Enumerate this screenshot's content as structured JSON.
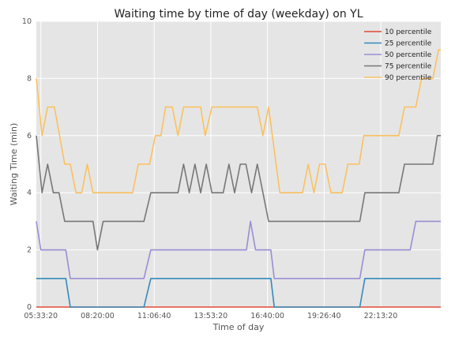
{
  "chart_data": {
    "type": "line",
    "title": "Waiting time by time of day (weekday) on YL",
    "xlabel": "Time of day",
    "ylabel": "Waiting Time (min)",
    "x_range_seconds": [
      19200,
      90600
    ],
    "ylim": [
      0,
      10
    ],
    "x_ticks": [
      {
        "label": "05:33:20",
        "t": 20000
      },
      {
        "label": "08:20:00",
        "t": 30000
      },
      {
        "label": "11:06:40",
        "t": 40000
      },
      {
        "label": "13:53:20",
        "t": 50000
      },
      {
        "label": "16:40:00",
        "t": 60000
      },
      {
        "label": "19:26:40",
        "t": 70000
      },
      {
        "label": "22:13:20",
        "t": 80000
      }
    ],
    "y_ticks": [
      0,
      2,
      4,
      6,
      8,
      10
    ],
    "grid": true,
    "legend_position": "top-right",
    "series": [
      {
        "name": "10 percentile",
        "color": "#e24a33",
        "points": [
          [
            19200,
            0
          ],
          [
            90600,
            0
          ]
        ]
      },
      {
        "name": "25 percentile",
        "color": "#348abd",
        "points": [
          [
            19200,
            1
          ],
          [
            24400,
            1
          ],
          [
            25200,
            0
          ],
          [
            38200,
            0
          ],
          [
            39400,
            1
          ],
          [
            60600,
            1
          ],
          [
            61200,
            0
          ],
          [
            76300,
            0
          ],
          [
            77200,
            1
          ],
          [
            90600,
            1
          ]
        ]
      },
      {
        "name": "50 percentile",
        "color": "#988ed5",
        "points": [
          [
            19200,
            3
          ],
          [
            20000,
            2
          ],
          [
            24400,
            2
          ],
          [
            25200,
            1
          ],
          [
            38200,
            1
          ],
          [
            39400,
            2
          ],
          [
            56300,
            2
          ],
          [
            57000,
            3
          ],
          [
            57900,
            2
          ],
          [
            60600,
            2
          ],
          [
            61200,
            1
          ],
          [
            76300,
            1
          ],
          [
            77200,
            2
          ],
          [
            85200,
            2
          ],
          [
            86200,
            3
          ],
          [
            90600,
            3
          ]
        ]
      },
      {
        "name": "75 percentile",
        "color": "#777777",
        "points": [
          [
            19200,
            6
          ],
          [
            20200,
            4
          ],
          [
            21200,
            5
          ],
          [
            22200,
            4
          ],
          [
            23200,
            4
          ],
          [
            24200,
            3
          ],
          [
            29200,
            3
          ],
          [
            30000,
            2
          ],
          [
            31000,
            3
          ],
          [
            38200,
            3
          ],
          [
            39400,
            4
          ],
          [
            44200,
            4
          ],
          [
            45200,
            5
          ],
          [
            46200,
            4
          ],
          [
            47200,
            5
          ],
          [
            48200,
            4
          ],
          [
            49200,
            5
          ],
          [
            50200,
            4
          ],
          [
            52200,
            4
          ],
          [
            53200,
            5
          ],
          [
            54200,
            4
          ],
          [
            55200,
            5
          ],
          [
            56200,
            5
          ],
          [
            57200,
            4
          ],
          [
            58200,
            5
          ],
          [
            60200,
            3
          ],
          [
            76300,
            3
          ],
          [
            77200,
            4
          ],
          [
            83200,
            4
          ],
          [
            84200,
            5
          ],
          [
            89200,
            5
          ],
          [
            90000,
            6
          ],
          [
            90600,
            6
          ]
        ]
      },
      {
        "name": "90 percentile",
        "color": "#fbc15e",
        "points": [
          [
            19200,
            8
          ],
          [
            20200,
            6
          ],
          [
            21200,
            7
          ],
          [
            22400,
            7
          ],
          [
            24200,
            5
          ],
          [
            25200,
            5
          ],
          [
            26200,
            4
          ],
          [
            27200,
            4
          ],
          [
            28200,
            5
          ],
          [
            29200,
            4
          ],
          [
            36200,
            4
          ],
          [
            37200,
            5
          ],
          [
            39200,
            5
          ],
          [
            40200,
            6
          ],
          [
            41200,
            6
          ],
          [
            42000,
            7
          ],
          [
            43200,
            7
          ],
          [
            44200,
            6
          ],
          [
            45200,
            7
          ],
          [
            48200,
            7
          ],
          [
            49000,
            6
          ],
          [
            50200,
            7
          ],
          [
            58200,
            7
          ],
          [
            59200,
            6
          ],
          [
            60200,
            7
          ],
          [
            62200,
            4
          ],
          [
            66200,
            4
          ],
          [
            67200,
            5
          ],
          [
            68200,
            4
          ],
          [
            69200,
            5
          ],
          [
            70200,
            5
          ],
          [
            71200,
            4
          ],
          [
            73200,
            4
          ],
          [
            74200,
            5
          ],
          [
            76200,
            5
          ],
          [
            77000,
            6
          ],
          [
            83200,
            6
          ],
          [
            84200,
            7
          ],
          [
            86200,
            7
          ],
          [
            87200,
            8
          ],
          [
            89200,
            8
          ],
          [
            90200,
            9
          ],
          [
            90600,
            9
          ]
        ]
      }
    ]
  }
}
